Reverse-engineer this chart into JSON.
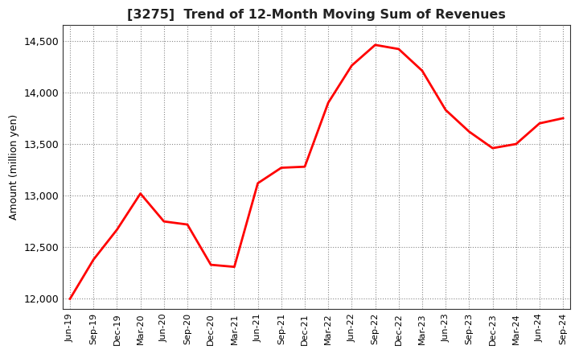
{
  "title": "[3275]  Trend of 12-Month Moving Sum of Revenues",
  "ylabel": "Amount (million yen)",
  "line_color": "#FF0000",
  "line_width": 2.0,
  "background_color": "#FFFFFF",
  "plot_bg_color": "#FFFFFF",
  "grid_color": "#888888",
  "ylim": [
    11900,
    14650
  ],
  "yticks": [
    12000,
    12500,
    13000,
    13500,
    14000,
    14500
  ],
  "x_labels": [
    "Jun-19",
    "Sep-19",
    "Dec-19",
    "Mar-20",
    "Jun-20",
    "Sep-20",
    "Dec-20",
    "Mar-21",
    "Jun-21",
    "Sep-21",
    "Dec-21",
    "Mar-22",
    "Jun-22",
    "Sep-22",
    "Dec-22",
    "Mar-23",
    "Jun-23",
    "Sep-23",
    "Dec-23",
    "Mar-24",
    "Jun-24",
    "Sep-24"
  ],
  "values": [
    12000,
    12380,
    12670,
    13020,
    12750,
    12720,
    12330,
    12310,
    13120,
    13270,
    13280,
    13900,
    14260,
    14460,
    14420,
    14210,
    13830,
    13620,
    13460,
    13500,
    13700,
    13750
  ]
}
